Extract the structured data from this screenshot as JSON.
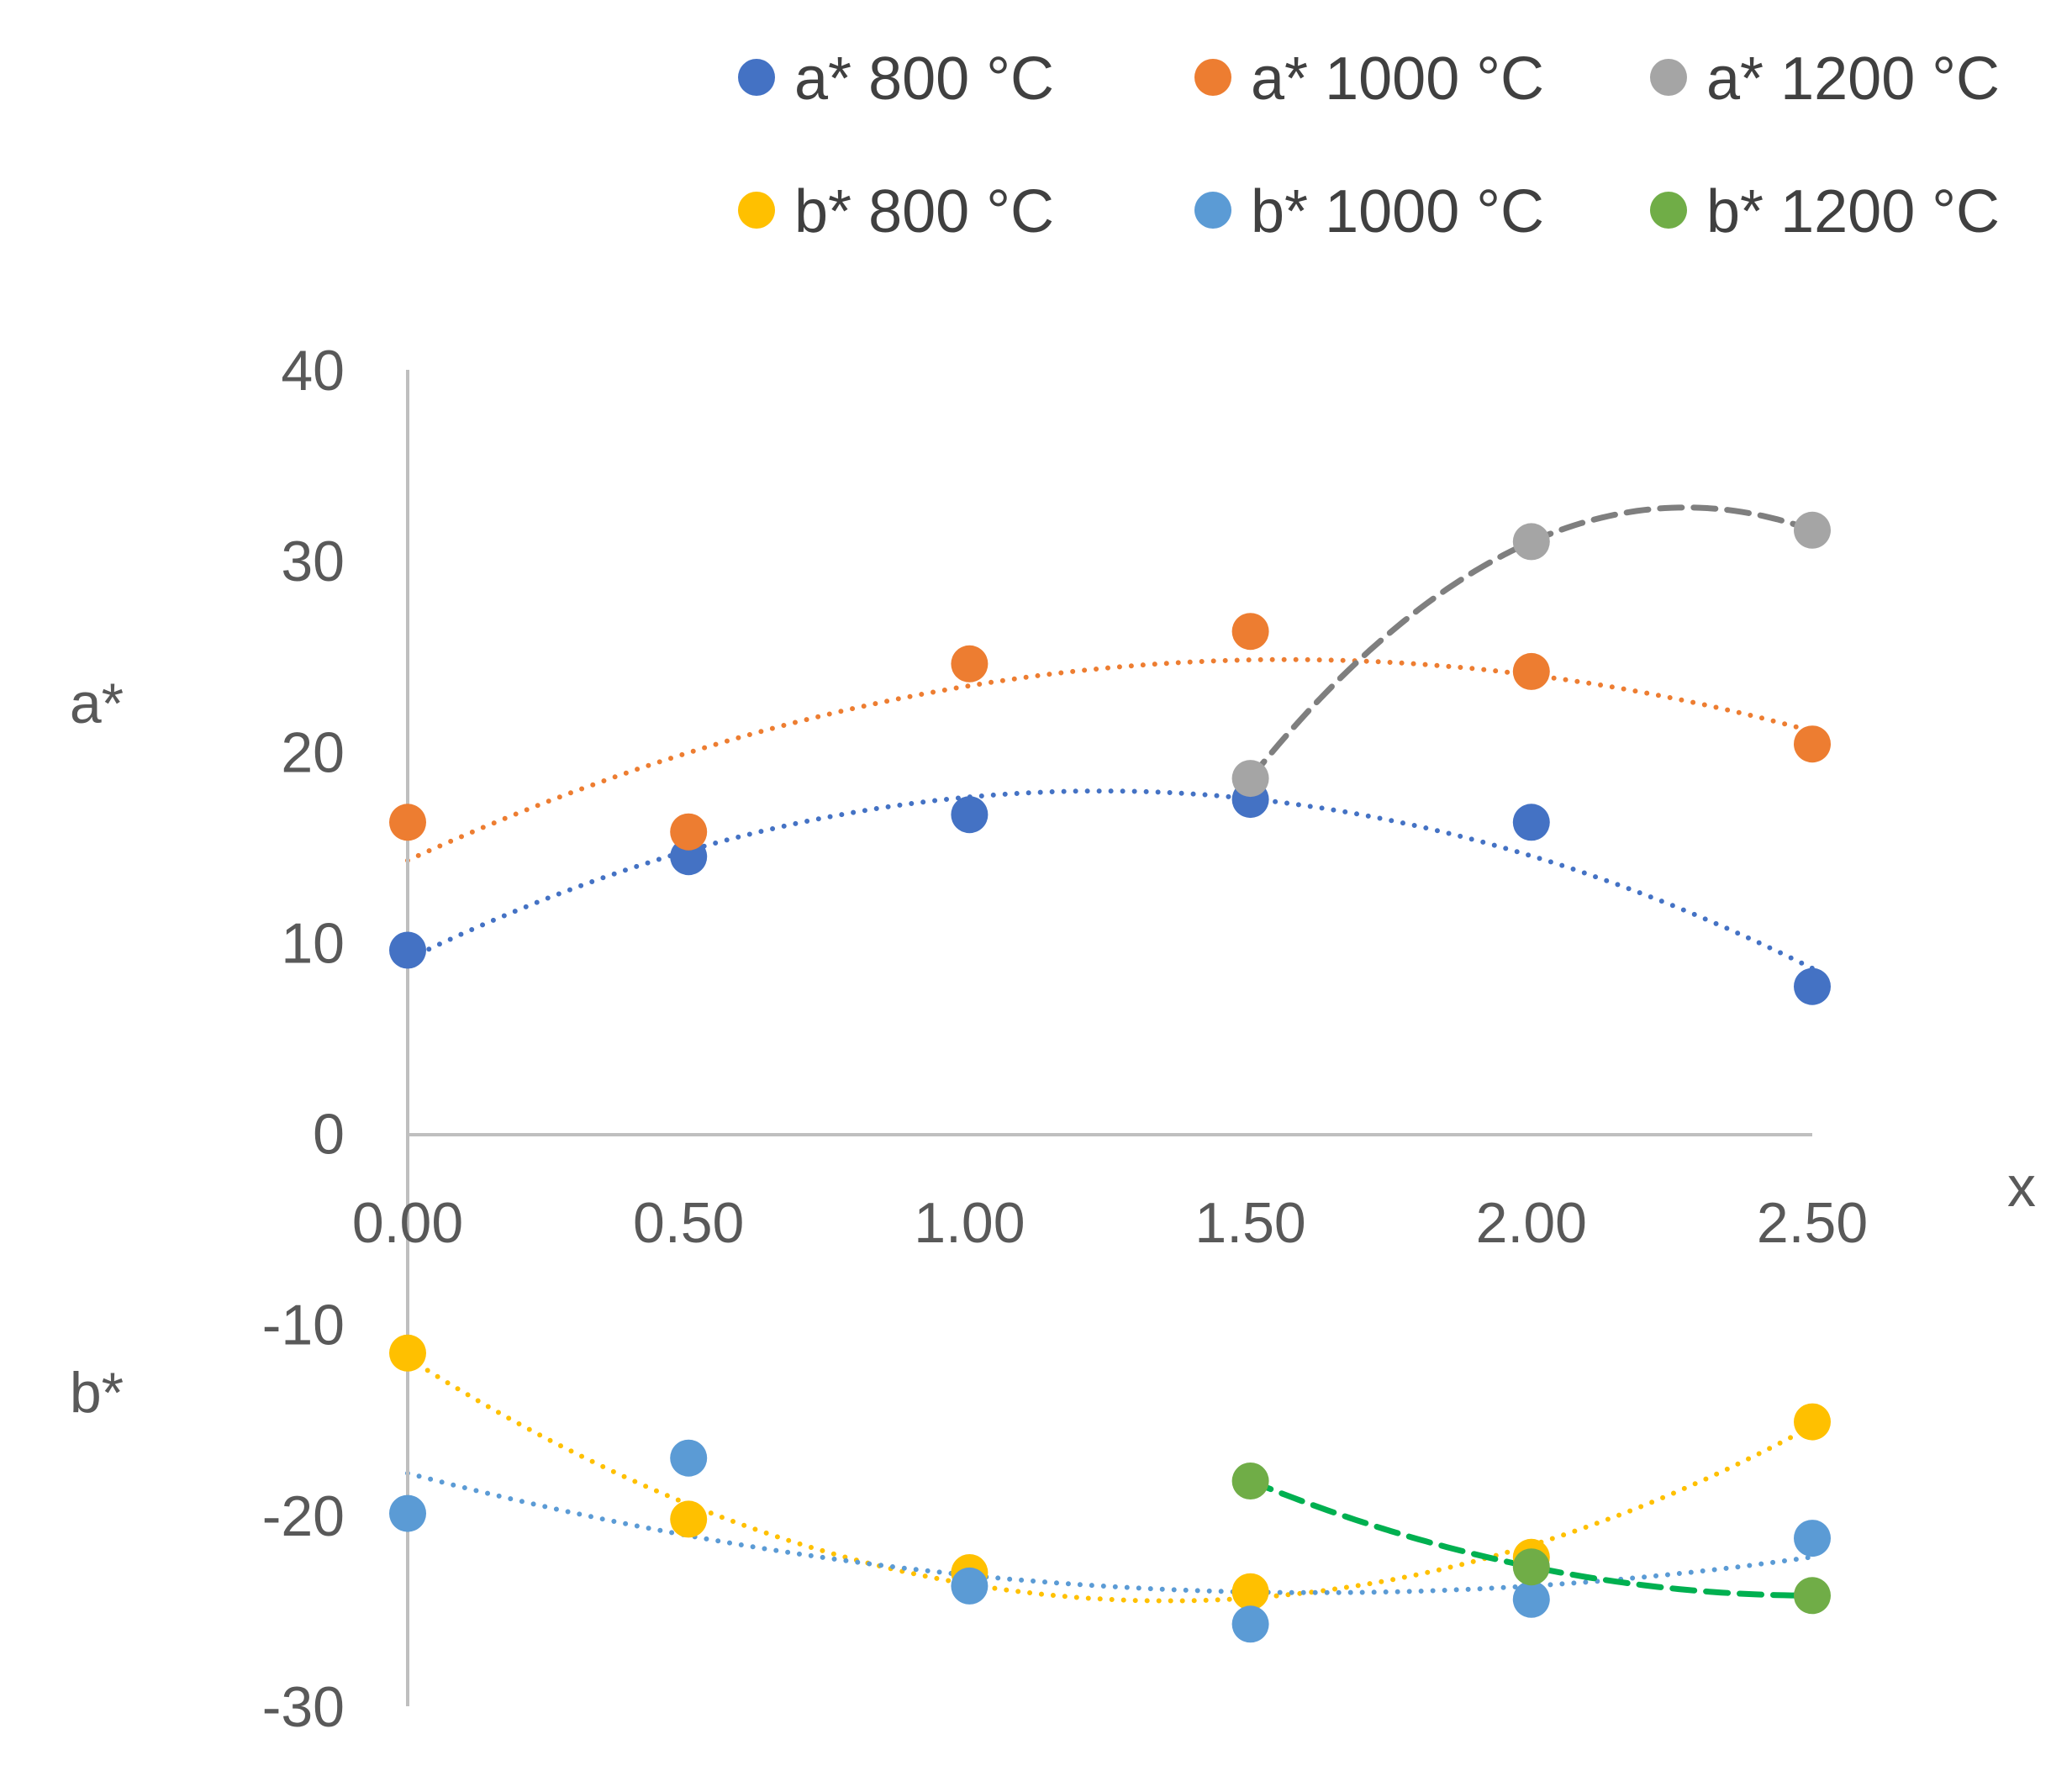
{
  "chart_data": {
    "type": "scatter",
    "title": "",
    "xlabel": "x",
    "ylabel_top": "a*",
    "ylabel_bottom": "b*",
    "xlim": [
      0,
      2.5
    ],
    "ylim": [
      -30,
      40
    ],
    "x_ticks": [
      "0.00",
      "0.50",
      "1.00",
      "1.50",
      "2.00",
      "2.50"
    ],
    "y_ticks": [
      "40",
      "30",
      "20",
      "10",
      "0",
      "-10",
      "-20",
      "-30"
    ],
    "grid": false,
    "legend_position": "top-right",
    "series": [
      {
        "name": "a* 800 °C",
        "color": "#4472C4",
        "x": [
          0,
          0.5,
          1.0,
          1.5,
          2.0,
          2.5
        ],
        "y": [
          9.6,
          14.5,
          16.7,
          17.5,
          16.3,
          7.7
        ],
        "trend": "dotted"
      },
      {
        "name": "a* 1000 °C",
        "color": "#ED7D31",
        "x": [
          0,
          0.5,
          1.0,
          1.5,
          2.0,
          2.5
        ],
        "y": [
          16.3,
          15.8,
          24.6,
          26.3,
          24.2,
          20.4
        ],
        "trend": "dotted"
      },
      {
        "name": "a* 1200 °C",
        "color": "#A5A5A5",
        "x": [
          1.5,
          2.0,
          2.5
        ],
        "y": [
          18.6,
          31.0,
          31.6
        ],
        "trend": "dashed",
        "trend_color": "#7F7F7F"
      },
      {
        "name": "b* 800 °C",
        "color": "#FFC000",
        "x": [
          0,
          0.5,
          1.0,
          1.5,
          2.0,
          2.5
        ],
        "y": [
          -11.5,
          -20.2,
          -23.0,
          -24.0,
          -22.2,
          -15.1
        ],
        "trend": "dotted"
      },
      {
        "name": "b* 1000 °C",
        "color": "#5B9BD5",
        "x": [
          0,
          0.5,
          1.0,
          1.5,
          2.0,
          2.5
        ],
        "y": [
          -19.9,
          -17.0,
          -23.7,
          -25.7,
          -24.4,
          -21.2
        ],
        "trend": "dotted"
      },
      {
        "name": "b* 1200 °C",
        "color": "#70AD47",
        "x": [
          1.5,
          2.0,
          2.5
        ],
        "y": [
          -18.2,
          -22.7,
          -24.2
        ],
        "trend": "dashed",
        "trend_color": "#00B050"
      }
    ]
  }
}
